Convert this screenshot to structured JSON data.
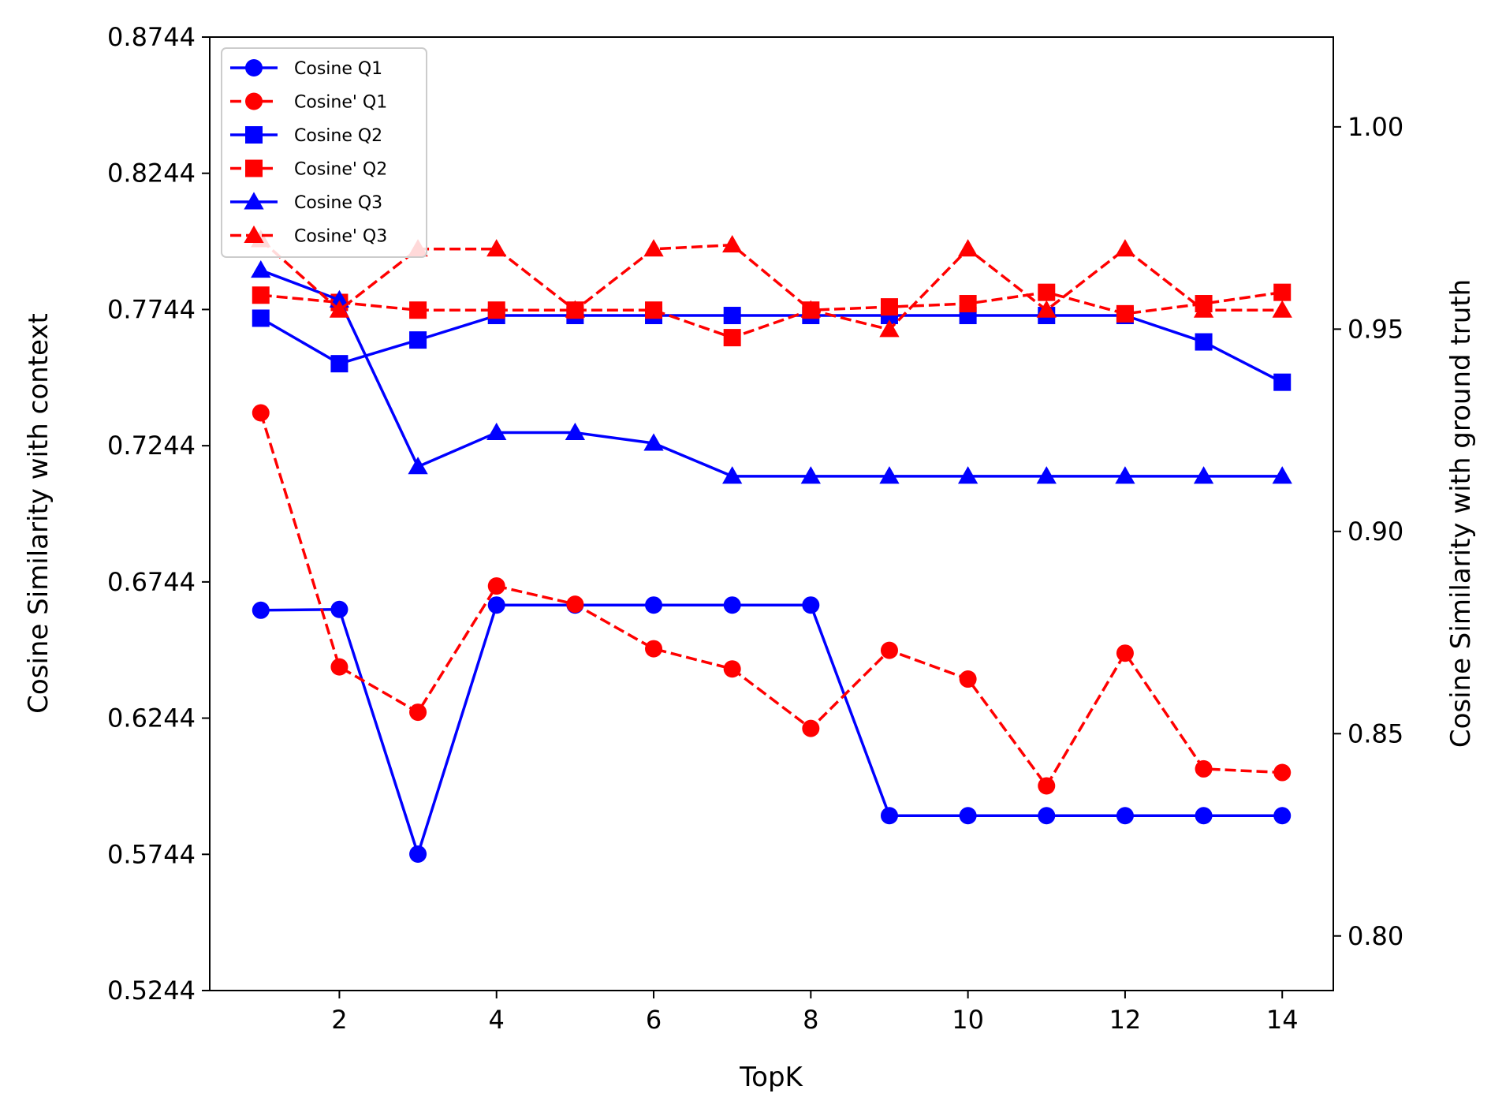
{
  "chart_data": {
    "type": "line",
    "title": "",
    "xlabel": "TopK",
    "ylabel_left": "Cosine Similarity with context",
    "ylabel_right": "Cosine Similarity with ground truth",
    "x": [
      1,
      2,
      3,
      4,
      5,
      6,
      7,
      8,
      9,
      10,
      11,
      12,
      13,
      14
    ],
    "xlim": [
      0.35,
      14.65
    ],
    "xticks": [
      2,
      4,
      6,
      8,
      10,
      12,
      14
    ],
    "xtick_labels": [
      "2",
      "4",
      "6",
      "8",
      "10",
      "12",
      "14"
    ],
    "ylim_left": [
      0.5244,
      0.8744
    ],
    "yticks_left": [
      0.5244,
      0.5744,
      0.6244,
      0.6744,
      0.7244,
      0.7744,
      0.8244,
      0.8744
    ],
    "ytick_labels_left": [
      "0.5244",
      "0.5744",
      "0.6244",
      "0.6744",
      "0.7244",
      "0.7744",
      "0.8244",
      "0.8744"
    ],
    "ylim_right": [
      0.7865,
      1.0222
    ],
    "yticks_right": [
      0.8,
      0.85,
      0.9,
      0.95,
      1.0
    ],
    "ytick_labels_right": [
      "0.80",
      "0.85",
      "0.90",
      "0.95",
      "1.00"
    ],
    "grid": false,
    "legend_position": "top-left",
    "series": [
      {
        "name": "Cosine Q1",
        "axis": "left",
        "color": "#0000ff",
        "dash": "solid",
        "marker": "circle",
        "values": [
          0.664,
          0.6643,
          0.5745,
          0.6659,
          0.6659,
          0.6659,
          0.6659,
          0.6659,
          0.5886,
          0.5886,
          0.5886,
          0.5886,
          0.5886,
          0.5886
        ]
      },
      {
        "name": "Cosine' Q1",
        "axis": "right",
        "color": "#ff0000",
        "dash": "dashed",
        "marker": "circle",
        "values": [
          0.9293,
          0.8665,
          0.8553,
          0.8865,
          0.882,
          0.871,
          0.866,
          0.8513,
          0.8706,
          0.8635,
          0.8371,
          0.8699,
          0.8413,
          0.8404
        ]
      },
      {
        "name": "Cosine Q2",
        "axis": "left",
        "color": "#0000ff",
        "dash": "solid",
        "marker": "square",
        "values": [
          0.7712,
          0.7545,
          0.7632,
          0.7722,
          0.7722,
          0.7722,
          0.7722,
          0.7722,
          0.7722,
          0.7722,
          0.7722,
          0.7722,
          0.7625,
          0.7477
        ]
      },
      {
        "name": "Cosine' Q2",
        "axis": "right",
        "color": "#ff0000",
        "dash": "dashed",
        "marker": "square",
        "values": [
          0.9584,
          0.9566,
          0.9547,
          0.9547,
          0.9547,
          0.9547,
          0.9479,
          0.9547,
          0.9555,
          0.9563,
          0.9591,
          0.9538,
          0.9563,
          0.9591
        ]
      },
      {
        "name": "Cosine Q3",
        "axis": "left",
        "color": "#0000ff",
        "dash": "solid",
        "marker": "triangle",
        "values": [
          0.7888,
          0.7779,
          0.7167,
          0.7292,
          0.7292,
          0.7253,
          0.7132,
          0.7132,
          0.7132,
          0.7132,
          0.7132,
          0.7132,
          0.7132,
          0.7132
        ]
      },
      {
        "name": "Cosine' Q3",
        "axis": "right",
        "color": "#ff0000",
        "dash": "dashed",
        "marker": "triangle",
        "values": [
          0.9721,
          0.9547,
          0.9698,
          0.9698,
          0.9547,
          0.9698,
          0.9708,
          0.9547,
          0.9499,
          0.9698,
          0.9547,
          0.9698,
          0.9547,
          0.9547
        ]
      }
    ]
  }
}
